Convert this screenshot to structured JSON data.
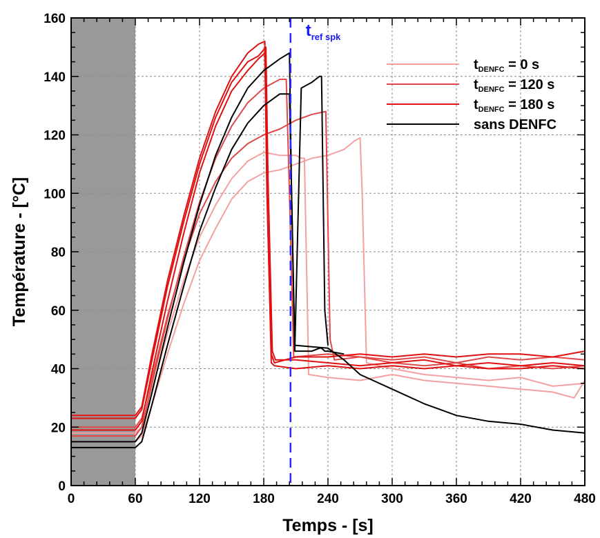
{
  "chart_data": {
    "type": "line",
    "xlabel": "Temps - [s]",
    "ylabel": "Température - [°C]",
    "xlim": [
      0,
      480
    ],
    "ylim": [
      0,
      160
    ],
    "x_ticks": [
      0,
      60,
      120,
      180,
      240,
      300,
      360,
      420,
      480
    ],
    "y_ticks": [
      0,
      20,
      40,
      60,
      80,
      100,
      120,
      140,
      160
    ],
    "grid": true,
    "legend_position": "top-right",
    "shaded_region": {
      "x_start": 0,
      "x_end": 60,
      "color": "#999999"
    },
    "reference_line": {
      "x": 205,
      "label_main": "t",
      "label_sub": "ref spk",
      "color": "#2a2aff"
    },
    "legend": [
      {
        "main": "t",
        "sub": "DENFC",
        "suffix": "= 0 s",
        "color": "#f4a0a0"
      },
      {
        "main": "t",
        "sub": "DENFC",
        "suffix": "= 120 s",
        "color": "#e04848"
      },
      {
        "main": "t",
        "sub": "DENFC",
        "suffix": "= 180 s",
        "color": "#e01010"
      },
      {
        "main": "",
        "sub": "",
        "suffix": "sans DENFC",
        "color": "#000000"
      }
    ],
    "series": [
      {
        "group": 0,
        "color": "#f4a0a0",
        "x": [
          0,
          60,
          66,
          75,
          90,
          105,
          120,
          135,
          150,
          165,
          180,
          195,
          210,
          225,
          240,
          255,
          265,
          270,
          272,
          276,
          300,
          330,
          360,
          390,
          420,
          450,
          480
        ],
        "y": [
          15,
          15,
          17,
          27,
          45,
          62,
          77,
          88,
          98,
          104,
          107,
          108,
          110,
          112,
          113,
          115,
          118,
          119,
          100,
          42,
          40,
          38,
          37,
          36,
          37,
          34,
          35
        ]
      },
      {
        "group": 0,
        "color": "#f4a0a0",
        "x": [
          0,
          60,
          66,
          75,
          90,
          105,
          120,
          135,
          150,
          165,
          180,
          195,
          210,
          215,
          218,
          222,
          240,
          270,
          300,
          330,
          360,
          390,
          420,
          450,
          470,
          480
        ],
        "y": [
          18,
          18,
          20,
          32,
          52,
          70,
          85,
          96,
          105,
          111,
          114,
          113,
          113,
          112,
          112,
          38,
          37,
          36,
          38,
          36,
          35,
          34,
          33,
          32,
          30,
          36
        ]
      },
      {
        "group": 1,
        "color": "#e04848",
        "x": [
          0,
          60,
          66,
          75,
          90,
          105,
          120,
          135,
          150,
          165,
          180,
          195,
          210,
          225,
          238,
          242,
          246,
          270,
          300,
          330,
          360,
          390,
          420,
          450,
          480
        ],
        "y": [
          20,
          20,
          23,
          36,
          58,
          77,
          93,
          104,
          112,
          117,
          120,
          122,
          125,
          127,
          128,
          50,
          43,
          44,
          42,
          41,
          42,
          40,
          41,
          40,
          41
        ]
      },
      {
        "group": 1,
        "color": "#e04848",
        "x": [
          0,
          60,
          66,
          75,
          90,
          105,
          120,
          135,
          150,
          165,
          180,
          195,
          201,
          204,
          208,
          240,
          270,
          300,
          330,
          360,
          390,
          420,
          450,
          480
        ],
        "y": [
          17,
          17,
          20,
          34,
          57,
          78,
          97,
          112,
          123,
          131,
          136,
          139,
          139,
          100,
          44,
          45,
          44,
          43,
          44,
          42,
          44,
          43,
          44,
          43
        ]
      },
      {
        "group": 2,
        "color": "#e01010",
        "x": [
          0,
          60,
          66,
          75,
          90,
          105,
          120,
          135,
          150,
          165,
          175,
          181,
          183,
          187,
          190,
          210,
          240,
          270,
          300,
          330,
          360,
          390,
          420,
          450,
          480
        ],
        "y": [
          24,
          24,
          27,
          44,
          70,
          92,
          112,
          128,
          140,
          148,
          151,
          152,
          100,
          45,
          42,
          44,
          44,
          45,
          44,
          45,
          44,
          45,
          45,
          44,
          46
        ]
      },
      {
        "group": 2,
        "color": "#e01010",
        "x": [
          0,
          60,
          66,
          75,
          90,
          105,
          120,
          135,
          150,
          165,
          175,
          182,
          184,
          188,
          191,
          210,
          240,
          270,
          300,
          330,
          360,
          390,
          420,
          450,
          480
        ],
        "y": [
          23,
          23,
          26,
          42,
          68,
          90,
          110,
          126,
          138,
          145,
          147,
          150,
          105,
          46,
          43,
          43,
          42,
          41,
          42,
          43,
          41,
          42,
          41,
          42,
          41
        ]
      },
      {
        "group": 2,
        "color": "#e01010",
        "x": [
          0,
          60,
          66,
          75,
          90,
          105,
          120,
          135,
          150,
          165,
          175,
          181,
          183,
          187,
          190,
          210,
          240,
          270,
          300,
          330,
          360,
          390,
          420,
          450,
          480
        ],
        "y": [
          19,
          19,
          22,
          38,
          63,
          86,
          107,
          123,
          135,
          142,
          146,
          148,
          102,
          42,
          41,
          40,
          41,
          40,
          41,
          40,
          41,
          40,
          40,
          41,
          40
        ]
      },
      {
        "group": 3,
        "color": "#000000",
        "x": [
          0,
          60,
          66,
          75,
          90,
          105,
          120,
          135,
          150,
          165,
          180,
          195,
          204,
          206,
          209,
          240,
          255,
          270,
          300,
          330,
          360,
          390,
          420,
          450,
          480
        ],
        "y": [
          13,
          13,
          15,
          27,
          48,
          68,
          87,
          102,
          115,
          124,
          130,
          134,
          134,
          100,
          48,
          47,
          43,
          38,
          33,
          28,
          24,
          22,
          21,
          19,
          18
        ]
      },
      {
        "group": 3,
        "color": "#000000",
        "x": [
          0,
          60,
          66,
          75,
          90,
          105,
          120,
          135,
          150,
          165,
          180,
          195,
          204,
          206,
          209,
          215,
          225,
          232,
          234,
          237,
          240,
          255
        ],
        "y": [
          15,
          15,
          18,
          31,
          54,
          76,
          96,
          113,
          126,
          136,
          142,
          146,
          148,
          100,
          46,
          46,
          46,
          47,
          47,
          46,
          46,
          45
        ]
      },
      {
        "group": 3,
        "color": "#000000",
        "x": [
          209,
          215,
          225,
          232,
          234,
          237,
          240
        ],
        "y": [
          46,
          136,
          138,
          140,
          140,
          60,
          48
        ]
      }
    ]
  }
}
